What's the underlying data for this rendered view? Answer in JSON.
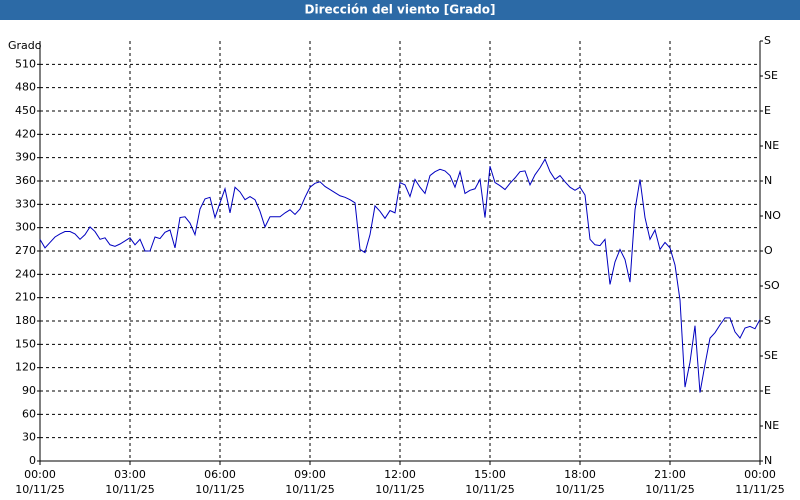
{
  "chart_data": {
    "type": "line",
    "title": "Dirección del viento [Grado]",
    "y_label": "Grado",
    "x": [
      "10/11/25 00:00",
      "10/11/25 00:10",
      "10/11/25 00:20",
      "10/11/25 00:30",
      "10/11/25 00:40",
      "10/11/25 00:50",
      "10/11/25 01:00",
      "10/11/25 01:10",
      "10/11/25 01:20",
      "10/11/25 01:30",
      "10/11/25 01:40",
      "10/11/25 01:50",
      "10/11/25 02:00",
      "10/11/25 02:10",
      "10/11/25 02:20",
      "10/11/25 02:30",
      "10/11/25 02:40",
      "10/11/25 02:50",
      "10/11/25 03:00",
      "10/11/25 03:10",
      "10/11/25 03:20",
      "10/11/25 03:30",
      "10/11/25 03:40",
      "10/11/25 03:50",
      "10/11/25 04:00",
      "10/11/25 04:10",
      "10/11/25 04:20",
      "10/11/25 04:30",
      "10/11/25 04:40",
      "10/11/25 04:50",
      "10/11/25 05:00",
      "10/11/25 05:10",
      "10/11/25 05:20",
      "10/11/25 05:30",
      "10/11/25 05:40",
      "10/11/25 05:50",
      "10/11/25 06:00",
      "10/11/25 06:10",
      "10/11/25 06:20",
      "10/11/25 06:30",
      "10/11/25 06:40",
      "10/11/25 06:50",
      "10/11/25 07:00",
      "10/11/25 07:10",
      "10/11/25 07:20",
      "10/11/25 07:30",
      "10/11/25 07:40",
      "10/11/25 07:50",
      "10/11/25 08:00",
      "10/11/25 08:10",
      "10/11/25 08:20",
      "10/11/25 08:30",
      "10/11/25 08:40",
      "10/11/25 08:50",
      "10/11/25 09:00",
      "10/11/25 09:10",
      "10/11/25 09:20",
      "10/11/25 09:30",
      "10/11/25 09:40",
      "10/11/25 09:50",
      "10/11/25 10:00",
      "10/11/25 10:10",
      "10/11/25 10:20",
      "10/11/25 10:30",
      "10/11/25 10:40",
      "10/11/25 10:50",
      "10/11/25 11:00",
      "10/11/25 11:10",
      "10/11/25 11:20",
      "10/11/25 11:30",
      "10/11/25 11:40",
      "10/11/25 11:50",
      "10/11/25 12:00",
      "10/11/25 12:10",
      "10/11/25 12:20",
      "10/11/25 12:30",
      "10/11/25 12:40",
      "10/11/25 12:50",
      "10/11/25 13:00",
      "10/11/25 13:10",
      "10/11/25 13:20",
      "10/11/25 13:30",
      "10/11/25 13:40",
      "10/11/25 13:50",
      "10/11/25 14:00",
      "10/11/25 14:10",
      "10/11/25 14:20",
      "10/11/25 14:30",
      "10/11/25 14:40",
      "10/11/25 14:50",
      "10/11/25 15:00",
      "10/11/25 15:10",
      "10/11/25 15:20",
      "10/11/25 15:30",
      "10/11/25 15:40",
      "10/11/25 15:50",
      "10/11/25 16:00",
      "10/11/25 16:10",
      "10/11/25 16:20",
      "10/11/25 16:30",
      "10/11/25 16:40",
      "10/11/25 16:50",
      "10/11/25 17:00",
      "10/11/25 17:10",
      "10/11/25 17:20",
      "10/11/25 17:30",
      "10/11/25 17:40",
      "10/11/25 17:50",
      "10/11/25 18:00",
      "10/11/25 18:10",
      "10/11/25 18:20",
      "10/11/25 18:30",
      "10/11/25 18:40",
      "10/11/25 18:50",
      "10/11/25 19:00",
      "10/11/25 19:10",
      "10/11/25 19:20",
      "10/11/25 19:30",
      "10/11/25 19:40",
      "10/11/25 19:50",
      "10/11/25 20:00",
      "10/11/25 20:10",
      "10/11/25 20:20",
      "10/11/25 20:30",
      "10/11/25 20:40",
      "10/11/25 20:50",
      "10/11/25 21:00",
      "10/11/25 21:10",
      "10/11/25 21:20",
      "10/11/25 21:30",
      "10/11/25 21:40",
      "10/11/25 21:50",
      "10/11/25 22:00",
      "10/11/25 22:10",
      "10/11/25 22:20",
      "10/11/25 22:30",
      "10/11/25 22:40",
      "10/11/25 22:50",
      "10/11/25 23:00",
      "10/11/25 23:10",
      "10/11/25 23:20",
      "10/11/25 23:30",
      "10/11/25 23:40",
      "10/11/25 23:50",
      "11/11/25 00:00"
    ],
    "series": [
      {
        "name": "Dirección del viento",
        "color": "#0000c0",
        "values": [
          285,
          274,
          281,
          288,
          292,
          295,
          295,
          292,
          285,
          291,
          301,
          295,
          285,
          287,
          278,
          276,
          279,
          283,
          287,
          278,
          285,
          270,
          270,
          288,
          286,
          294,
          297,
          274,
          313,
          314,
          306,
          291,
          324,
          337,
          339,
          313,
          332,
          350,
          319,
          352,
          346,
          336,
          340,
          336,
          321,
          301,
          314,
          314,
          314,
          319,
          323,
          317,
          324,
          339,
          352,
          357,
          359,
          353,
          349,
          345,
          341,
          339,
          336,
          332,
          272,
          268,
          291,
          328,
          321,
          312,
          322,
          319,
          358,
          355,
          340,
          362,
          352,
          344,
          367,
          372,
          375,
          373,
          367,
          352,
          372,
          344,
          348,
          350,
          362,
          313,
          379,
          358,
          354,
          349,
          357,
          364,
          372,
          373,
          355,
          368,
          377,
          388,
          372,
          362,
          367,
          359,
          352,
          348,
          352,
          342,
          285,
          278,
          277,
          285,
          227,
          256,
          272,
          259,
          230,
          323,
          362,
          313,
          285,
          297,
          272,
          281,
          274,
          252,
          207,
          95,
          127,
          174,
          88,
          124,
          158,
          165,
          175,
          184,
          184,
          166,
          158,
          171,
          173,
          170,
          182
        ]
      }
    ],
    "xlim": [
      "10/11/25 00:00",
      "11/11/25 00:00"
    ],
    "xticks": [
      {
        "value": "10/11/25 00:00",
        "label": [
          "00:00",
          "10/11/25"
        ]
      },
      {
        "value": "10/11/25 03:00",
        "label": [
          "03:00",
          "10/11/25"
        ]
      },
      {
        "value": "10/11/25 06:00",
        "label": [
          "06:00",
          "10/11/25"
        ]
      },
      {
        "value": "10/11/25 09:00",
        "label": [
          "09:00",
          "10/11/25"
        ]
      },
      {
        "value": "10/11/25 12:00",
        "label": [
          "12:00",
          "10/11/25"
        ]
      },
      {
        "value": "10/11/25 15:00",
        "label": [
          "15:00",
          "10/11/25"
        ]
      },
      {
        "value": "10/11/25 18:00",
        "label": [
          "18:00",
          "10/11/25"
        ]
      },
      {
        "value": "10/11/25 21:00",
        "label": [
          "21:00",
          "10/11/25"
        ]
      },
      {
        "value": "11/11/25 00:00",
        "label": [
          "00:00",
          "11/11/25"
        ]
      }
    ],
    "ylim": [
      0,
      540
    ],
    "yticks": [
      0,
      30,
      60,
      90,
      120,
      150,
      180,
      210,
      240,
      270,
      300,
      330,
      360,
      390,
      420,
      450,
      480,
      510
    ],
    "y2lim": [
      0,
      540
    ],
    "y2ticks": [
      {
        "value": 0,
        "label": "N"
      },
      {
        "value": 45,
        "label": "NE"
      },
      {
        "value": 90,
        "label": "E"
      },
      {
        "value": 135,
        "label": "SE"
      },
      {
        "value": 180,
        "label": "S"
      },
      {
        "value": 225,
        "label": "SO"
      },
      {
        "value": 270,
        "label": "O"
      },
      {
        "value": 315,
        "label": "NO"
      },
      {
        "value": 360,
        "label": "N"
      },
      {
        "value": 405,
        "label": "NE"
      },
      {
        "value": 450,
        "label": "E"
      },
      {
        "value": 495,
        "label": "SE"
      },
      {
        "value": 540,
        "label": "S"
      }
    ],
    "grid": true
  }
}
